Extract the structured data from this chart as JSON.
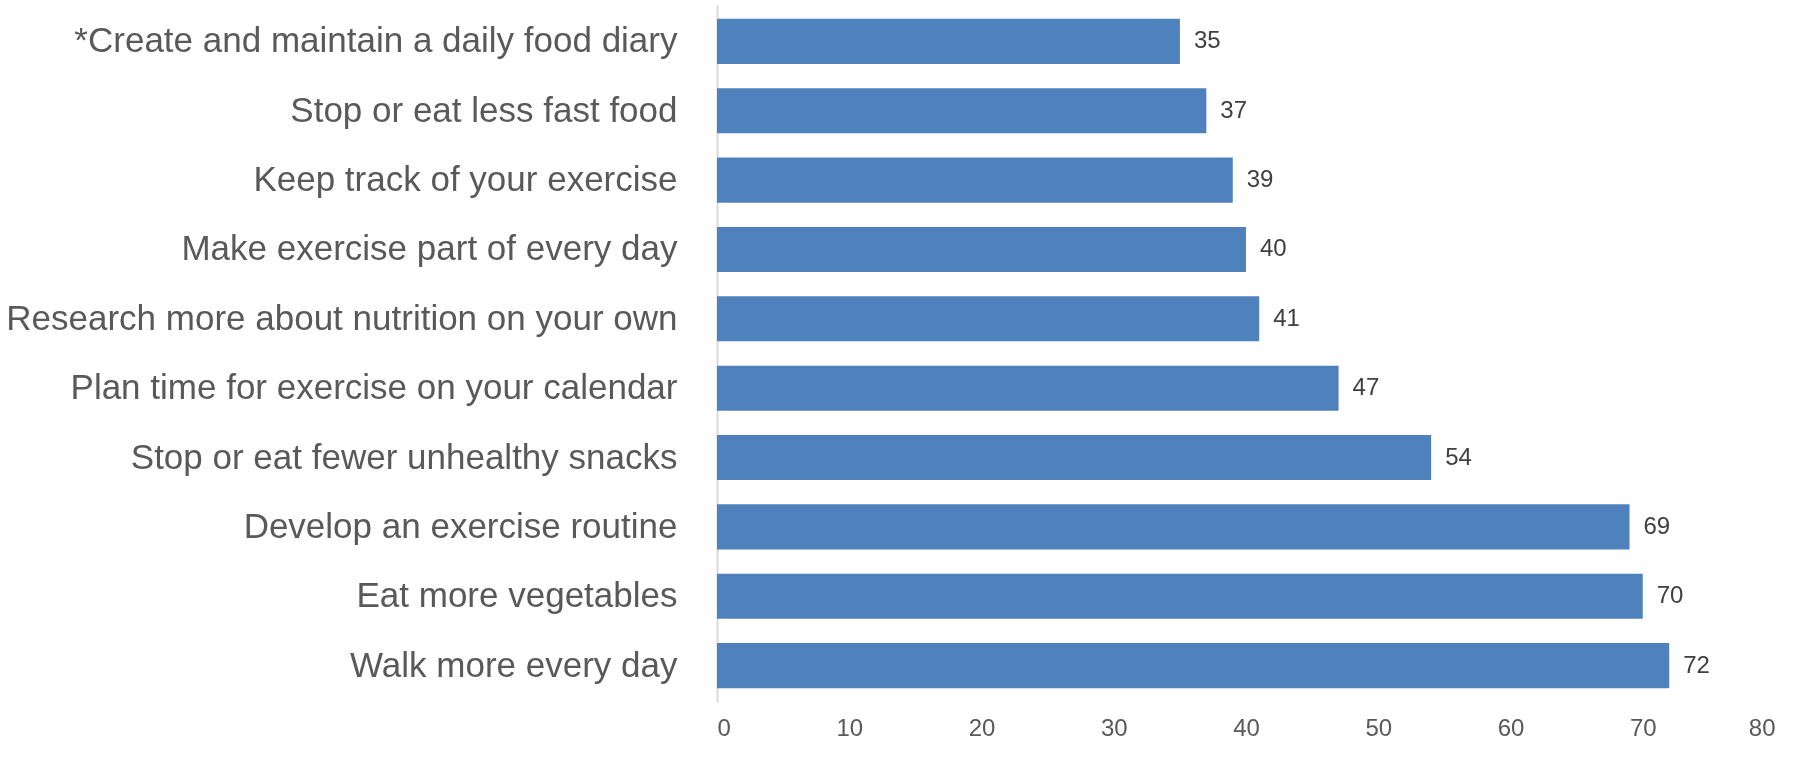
{
  "chart_data": {
    "type": "bar",
    "orientation": "horizontal",
    "categories": [
      "*Create and maintain a daily food diary",
      "Stop or eat less fast food",
      "Keep track of your exercise",
      "Make exercise part of every day",
      "Research more about nutrition on your own",
      "Plan time for exercise on your calendar",
      "Stop or eat fewer unhealthy snacks",
      "Develop an exercise routine",
      "Eat more vegetables",
      "Walk more every day"
    ],
    "values": [
      35,
      37,
      39,
      40,
      41,
      47,
      54,
      69,
      70,
      72
    ],
    "color": "#4f81bd",
    "xlim": [
      0,
      80
    ],
    "xticks": [
      0,
      10,
      20,
      30,
      40,
      50,
      60,
      70,
      80
    ],
    "data_labels": true,
    "grid": false
  }
}
